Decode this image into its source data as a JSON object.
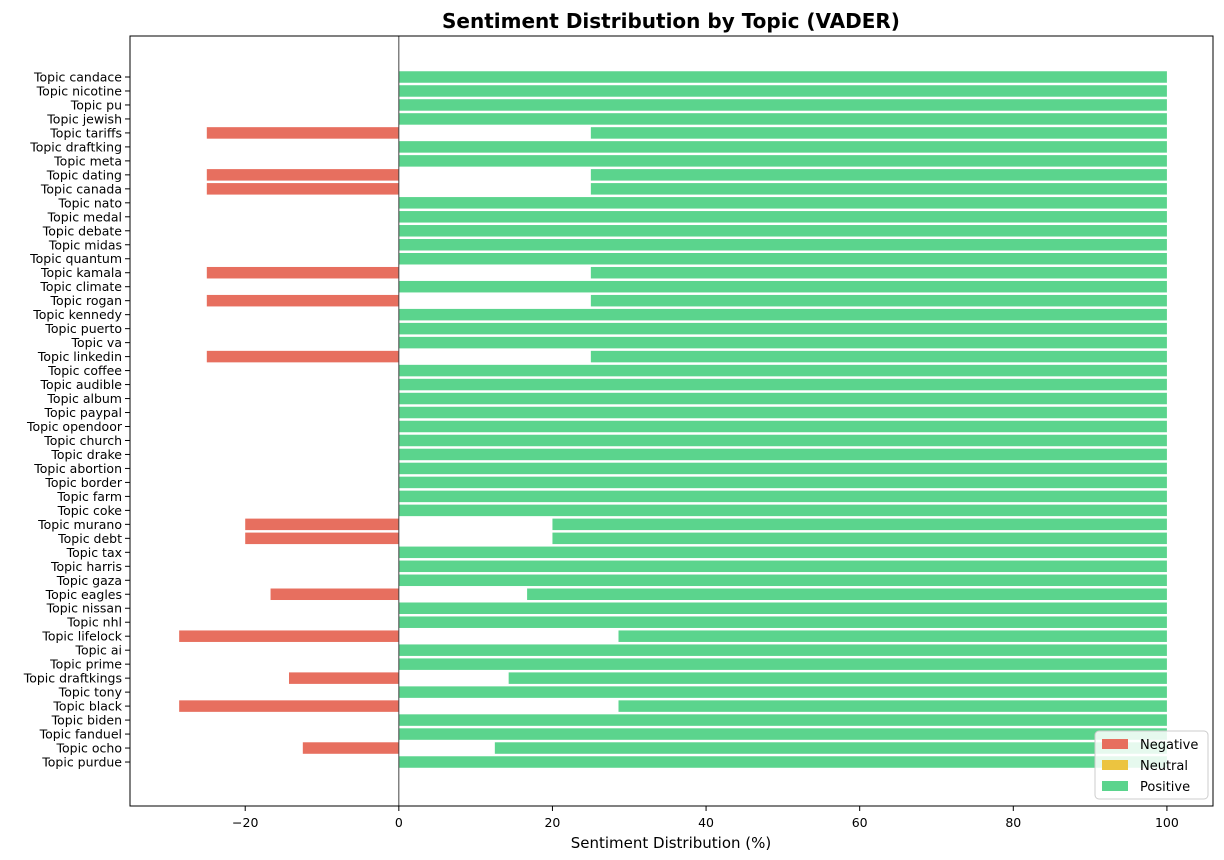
{
  "chart_data": {
    "type": "bar",
    "orientation": "horizontal",
    "title": "Sentiment Distribution by Topic (VADER)",
    "xlabel": "Sentiment Distribution (%)",
    "ylabel": "",
    "xlim": [
      -35,
      106
    ],
    "xticks": [
      -20,
      0,
      20,
      40,
      60,
      80,
      100
    ],
    "xtick_labels": [
      "−20",
      "0",
      "20",
      "40",
      "60",
      "80",
      "100"
    ],
    "grid": false,
    "legend_position": "lower-right",
    "colors": {
      "Negative": "#e76f5f",
      "Neutral": "#ecc440",
      "Positive": "#5bd48d"
    },
    "categories": [
      "Topic candace",
      "Topic nicotine",
      "Topic pu",
      "Topic jewish",
      "Topic tariffs",
      "Topic draftking",
      "Topic meta",
      "Topic dating",
      "Topic canada",
      "Topic nato",
      "Topic medal",
      "Topic debate",
      "Topic midas",
      "Topic quantum",
      "Topic kamala",
      "Topic climate",
      "Topic rogan",
      "Topic kennedy",
      "Topic puerto",
      "Topic va",
      "Topic linkedin",
      "Topic coffee",
      "Topic audible",
      "Topic album",
      "Topic paypal",
      "Topic opendoor",
      "Topic church",
      "Topic drake",
      "Topic abortion",
      "Topic border",
      "Topic farm",
      "Topic coke",
      "Topic murano",
      "Topic debt",
      "Topic tax",
      "Topic harris",
      "Topic gaza",
      "Topic eagles",
      "Topic nissan",
      "Topic nhl",
      "Topic lifelock",
      "Topic ai",
      "Topic prime",
      "Topic draftkings",
      "Topic tony",
      "Topic black",
      "Topic biden",
      "Topic fanduel",
      "Topic ocho",
      "Topic purdue"
    ],
    "series": [
      {
        "name": "Negative",
        "values": [
          0,
          0,
          0,
          0,
          25,
          0,
          0,
          25,
          25,
          0,
          0,
          0,
          0,
          0,
          25,
          0,
          25,
          0,
          0,
          0,
          25,
          0,
          0,
          0,
          0,
          0,
          0,
          0,
          0,
          0,
          0,
          0,
          20,
          20,
          0,
          0,
          0,
          16.7,
          0,
          0,
          28.6,
          0,
          0,
          14.3,
          0,
          28.6,
          0,
          0,
          12.5,
          0
        ]
      },
      {
        "name": "Neutral",
        "values": [
          0,
          0,
          0,
          0,
          0,
          0,
          0,
          0,
          0,
          0,
          0,
          0,
          0,
          0,
          0,
          0,
          0,
          0,
          0,
          0,
          0,
          0,
          0,
          0,
          0,
          0,
          0,
          0,
          0,
          0,
          0,
          0,
          0,
          0,
          0,
          0,
          0,
          0,
          0,
          0,
          0,
          0,
          0,
          0,
          0,
          0,
          0,
          0,
          0,
          0
        ]
      },
      {
        "name": "Positive",
        "values": [
          100,
          100,
          100,
          100,
          75,
          100,
          100,
          75,
          75,
          100,
          100,
          100,
          100,
          100,
          75,
          100,
          75,
          100,
          100,
          100,
          75,
          100,
          100,
          100,
          100,
          100,
          100,
          100,
          100,
          100,
          100,
          100,
          80,
          80,
          100,
          100,
          100,
          83.3,
          100,
          100,
          71.4,
          100,
          100,
          85.7,
          100,
          71.4,
          100,
          100,
          87.5,
          100
        ]
      }
    ]
  }
}
